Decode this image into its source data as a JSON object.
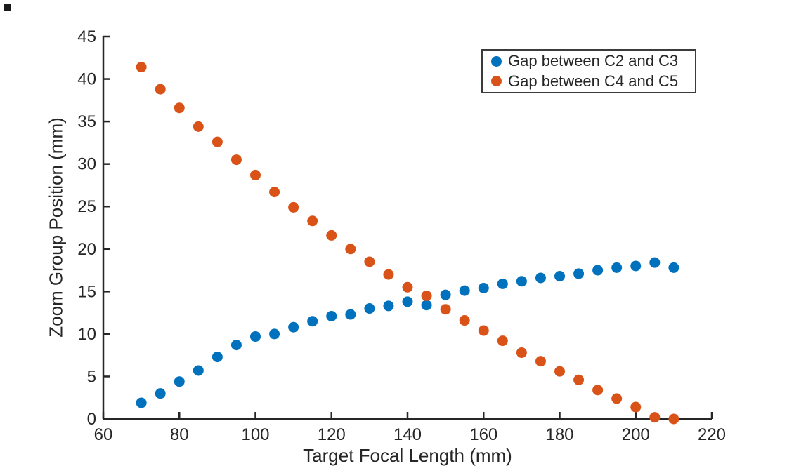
{
  "figure": {
    "background": "#ffffff",
    "axis_color": "#262626",
    "text_color": "#262626",
    "legend_border_color": "#3b3b3b"
  },
  "chart_data": {
    "type": "scatter",
    "title": "",
    "xlabel": "Target Focal Length (mm)",
    "ylabel": "Zoom Group Position (mm)",
    "xlim": [
      60,
      220
    ],
    "ylim": [
      0,
      45
    ],
    "x_ticks": [
      60,
      80,
      100,
      120,
      140,
      160,
      180,
      200,
      220
    ],
    "y_ticks": [
      0,
      5,
      10,
      15,
      20,
      25,
      30,
      35,
      40,
      45
    ],
    "grid": false,
    "legend_position": "top-right",
    "marker": "filled-circle",
    "x": [
      70,
      75,
      80,
      85,
      90,
      95,
      100,
      105,
      110,
      115,
      120,
      125,
      130,
      135,
      140,
      145,
      150,
      155,
      160,
      165,
      170,
      175,
      180,
      185,
      190,
      195,
      200,
      205,
      210
    ],
    "series": [
      {
        "name": "Gap between C2 and C3",
        "color": "#0072BD",
        "values": [
          1.9,
          3.0,
          4.4,
          5.7,
          7.3,
          8.7,
          9.7,
          10.0,
          10.8,
          11.5,
          12.1,
          12.3,
          13.0,
          13.3,
          13.8,
          13.4,
          14.6,
          15.1,
          15.4,
          15.9,
          16.2,
          16.6,
          16.8,
          17.1,
          17.5,
          17.8,
          18.0,
          18.4,
          17.8
        ]
      },
      {
        "name": "Gap between C4 and C5",
        "color": "#D95319",
        "values": [
          41.4,
          38.8,
          36.6,
          34.4,
          32.6,
          30.5,
          28.7,
          26.7,
          24.9,
          23.3,
          21.6,
          20.0,
          18.5,
          17.0,
          15.5,
          14.5,
          12.9,
          11.6,
          10.4,
          9.2,
          7.8,
          6.8,
          5.6,
          4.6,
          3.4,
          2.4,
          1.4,
          0.2,
          0.0
        ]
      }
    ]
  }
}
